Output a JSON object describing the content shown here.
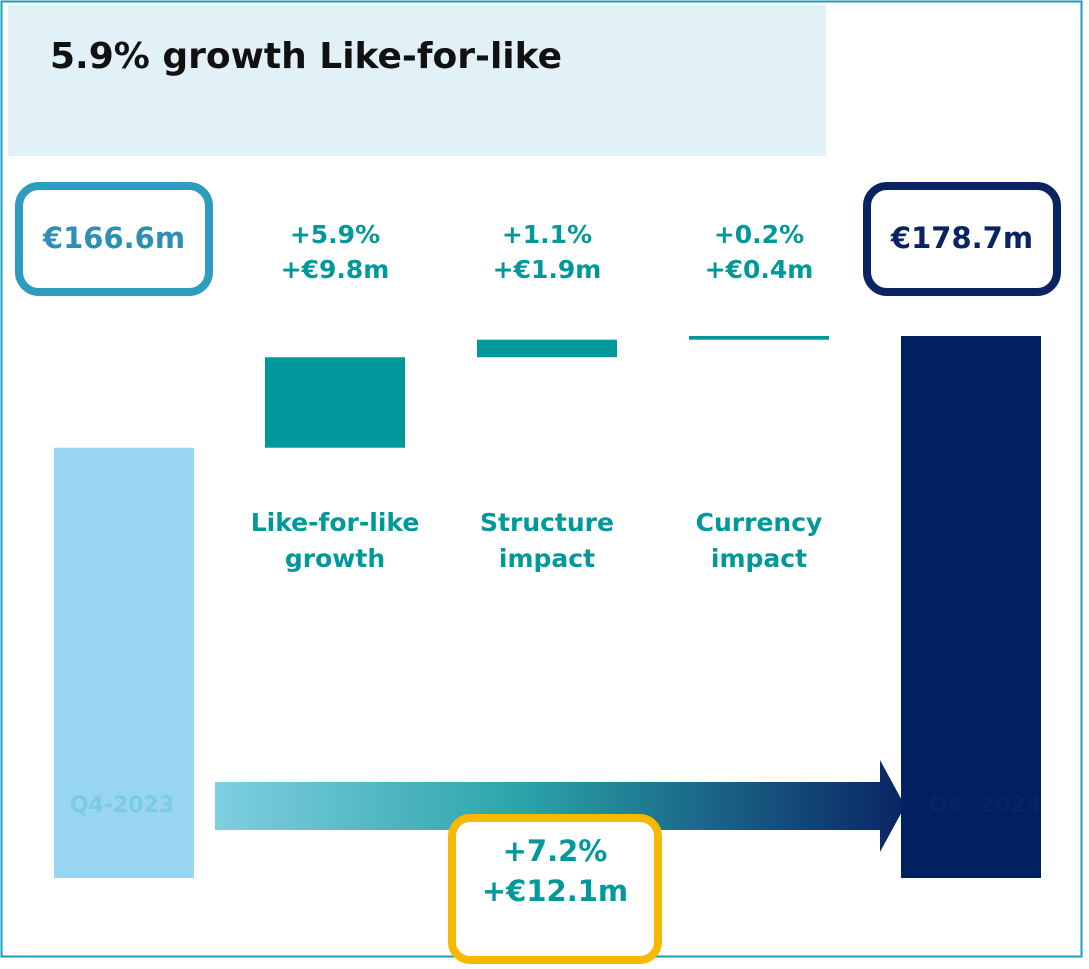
{
  "chart_data": {
    "type": "waterfall",
    "title": "5.9% growth Like-for-like",
    "categories": [
      "Q4-2023",
      "Like-for-like growth",
      "Structure impact",
      "Currency impact",
      "Q4 -2024"
    ],
    "values": [
      166.6,
      9.8,
      1.9,
      0.4,
      178.7
    ],
    "value_labels": [
      "€166.6m",
      "+€9.8m",
      "+€1.9m",
      "+€0.4m",
      "€178.7m"
    ],
    "percent_labels": [
      null,
      "+5.9%",
      "+1.1%",
      "+0.2%",
      null
    ],
    "colors": [
      "#97d5f0",
      "#00989a",
      "#00989a",
      "#00989a",
      "#002060"
    ],
    "ylim": [
      120,
      180
    ],
    "total": {
      "value": 12.1,
      "value_label": "+€12.1m",
      "percent_label": "+7.2%"
    }
  }
}
